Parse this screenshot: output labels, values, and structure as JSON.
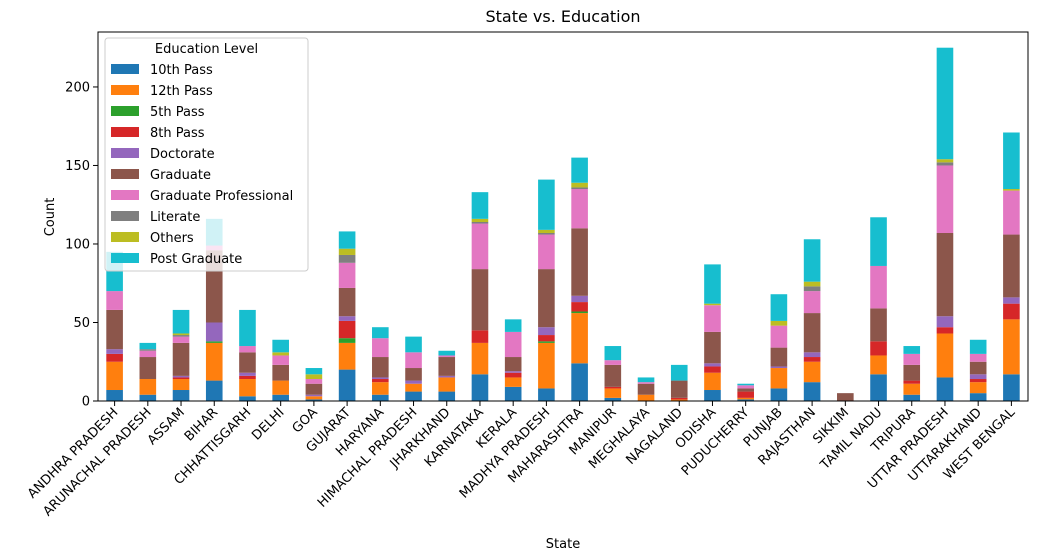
{
  "chart_data": {
    "type": "bar",
    "stacked": true,
    "title": "State vs. Education",
    "xlabel": "State",
    "ylabel": "Count",
    "ylim": [
      0,
      235
    ],
    "yticks": [
      0,
      50,
      100,
      150,
      200
    ],
    "legend_title": "Education Level",
    "legend_position": "top-left",
    "grid": false,
    "categories": [
      "ANDHRA PRADESH",
      "ARUNACHAL PRADESH",
      "ASSAM",
      "BIHAR",
      "CHHATTISGARH",
      "DELHI",
      "GOA",
      "GUJARAT",
      "HARYANA",
      "HIMACHAL PRADESH",
      "JHARKHAND",
      "KARNATAKA",
      "KERALA",
      "MADHYA PRADESH",
      "MAHARASHTRA",
      "MANIPUR",
      "MEGHALAYA",
      "NAGALAND",
      "ODISHA",
      "PUDUCHERRY",
      "PUNJAB",
      "RAJASTHAN",
      "SIKKIM",
      "TAMIL NADU",
      "TRIPURA",
      "UTTAR PRADESH",
      "UTTARAKHAND",
      "WEST BENGAL"
    ],
    "series": [
      {
        "name": "10th Pass",
        "color": "#1f77b4",
        "values": [
          7,
          4,
          7,
          13,
          3,
          4,
          1,
          20,
          4,
          6,
          6,
          17,
          9,
          8,
          24,
          2,
          0,
          0,
          7,
          1,
          8,
          12,
          0,
          17,
          4,
          15,
          5,
          17
        ]
      },
      {
        "name": "12th Pass",
        "color": "#ff7f0e",
        "values": [
          18,
          10,
          7,
          24,
          11,
          9,
          2,
          17,
          8,
          5,
          9,
          20,
          6,
          29,
          32,
          6,
          4,
          1,
          11,
          1,
          13,
          13,
          0,
          12,
          7,
          28,
          7,
          35
        ]
      },
      {
        "name": "5th Pass",
        "color": "#2ca02c",
        "values": [
          0,
          0,
          0,
          1,
          0,
          0,
          0,
          3,
          0,
          0,
          0,
          0,
          0,
          1,
          1,
          0,
          0,
          0,
          0,
          0,
          0,
          0,
          0,
          0,
          0,
          0,
          0,
          0
        ]
      },
      {
        "name": "8th Pass",
        "color": "#d62728",
        "values": [
          5,
          0,
          1,
          0,
          2,
          0,
          0,
          11,
          2,
          0,
          0,
          8,
          3,
          4,
          6,
          1,
          0,
          1,
          4,
          4,
          0,
          3,
          0,
          9,
          2,
          4,
          2,
          10
        ]
      },
      {
        "name": "Doctorate",
        "color": "#9467bd",
        "values": [
          3,
          0,
          1,
          12,
          2,
          0,
          1,
          3,
          1,
          2,
          1,
          0,
          1,
          5,
          4,
          0,
          0,
          0,
          2,
          0,
          1,
          3,
          0,
          0,
          0,
          7,
          3,
          4
        ]
      },
      {
        "name": "Graduate",
        "color": "#8c564b",
        "values": [
          25,
          14,
          21,
          46,
          13,
          10,
          7,
          18,
          13,
          8,
          12,
          39,
          9,
          37,
          43,
          14,
          7,
          11,
          20,
          2,
          12,
          25,
          5,
          21,
          10,
          53,
          8,
          40
        ]
      },
      {
        "name": "Graduate Professional",
        "color": "#e377c2",
        "values": [
          12,
          4,
          4,
          3,
          4,
          6,
          3,
          16,
          12,
          10,
          1,
          29,
          16,
          22,
          25,
          3,
          1,
          0,
          17,
          2,
          14,
          14,
          0,
          27,
          7,
          43,
          5,
          28
        ]
      },
      {
        "name": "Literate",
        "color": "#7f7f7f",
        "values": [
          0,
          1,
          1,
          0,
          0,
          0,
          0,
          5,
          0,
          0,
          0,
          1,
          0,
          1,
          1,
          0,
          0,
          0,
          0,
          0,
          0,
          3,
          0,
          0,
          0,
          2,
          0,
          0
        ]
      },
      {
        "name": "Others",
        "color": "#bcbd22",
        "values": [
          0,
          0,
          1,
          0,
          0,
          2,
          3,
          4,
          0,
          0,
          0,
          2,
          0,
          2,
          3,
          0,
          0,
          0,
          1,
          0,
          3,
          3,
          0,
          0,
          0,
          2,
          0,
          1
        ]
      },
      {
        "name": "Post Graduate",
        "color": "#17becf",
        "values": [
          25,
          4,
          15,
          17,
          23,
          8,
          4,
          11,
          7,
          10,
          3,
          17,
          8,
          32,
          16,
          9,
          3,
          10,
          25,
          1,
          17,
          27,
          0,
          31,
          5,
          71,
          9,
          36
        ]
      }
    ]
  }
}
